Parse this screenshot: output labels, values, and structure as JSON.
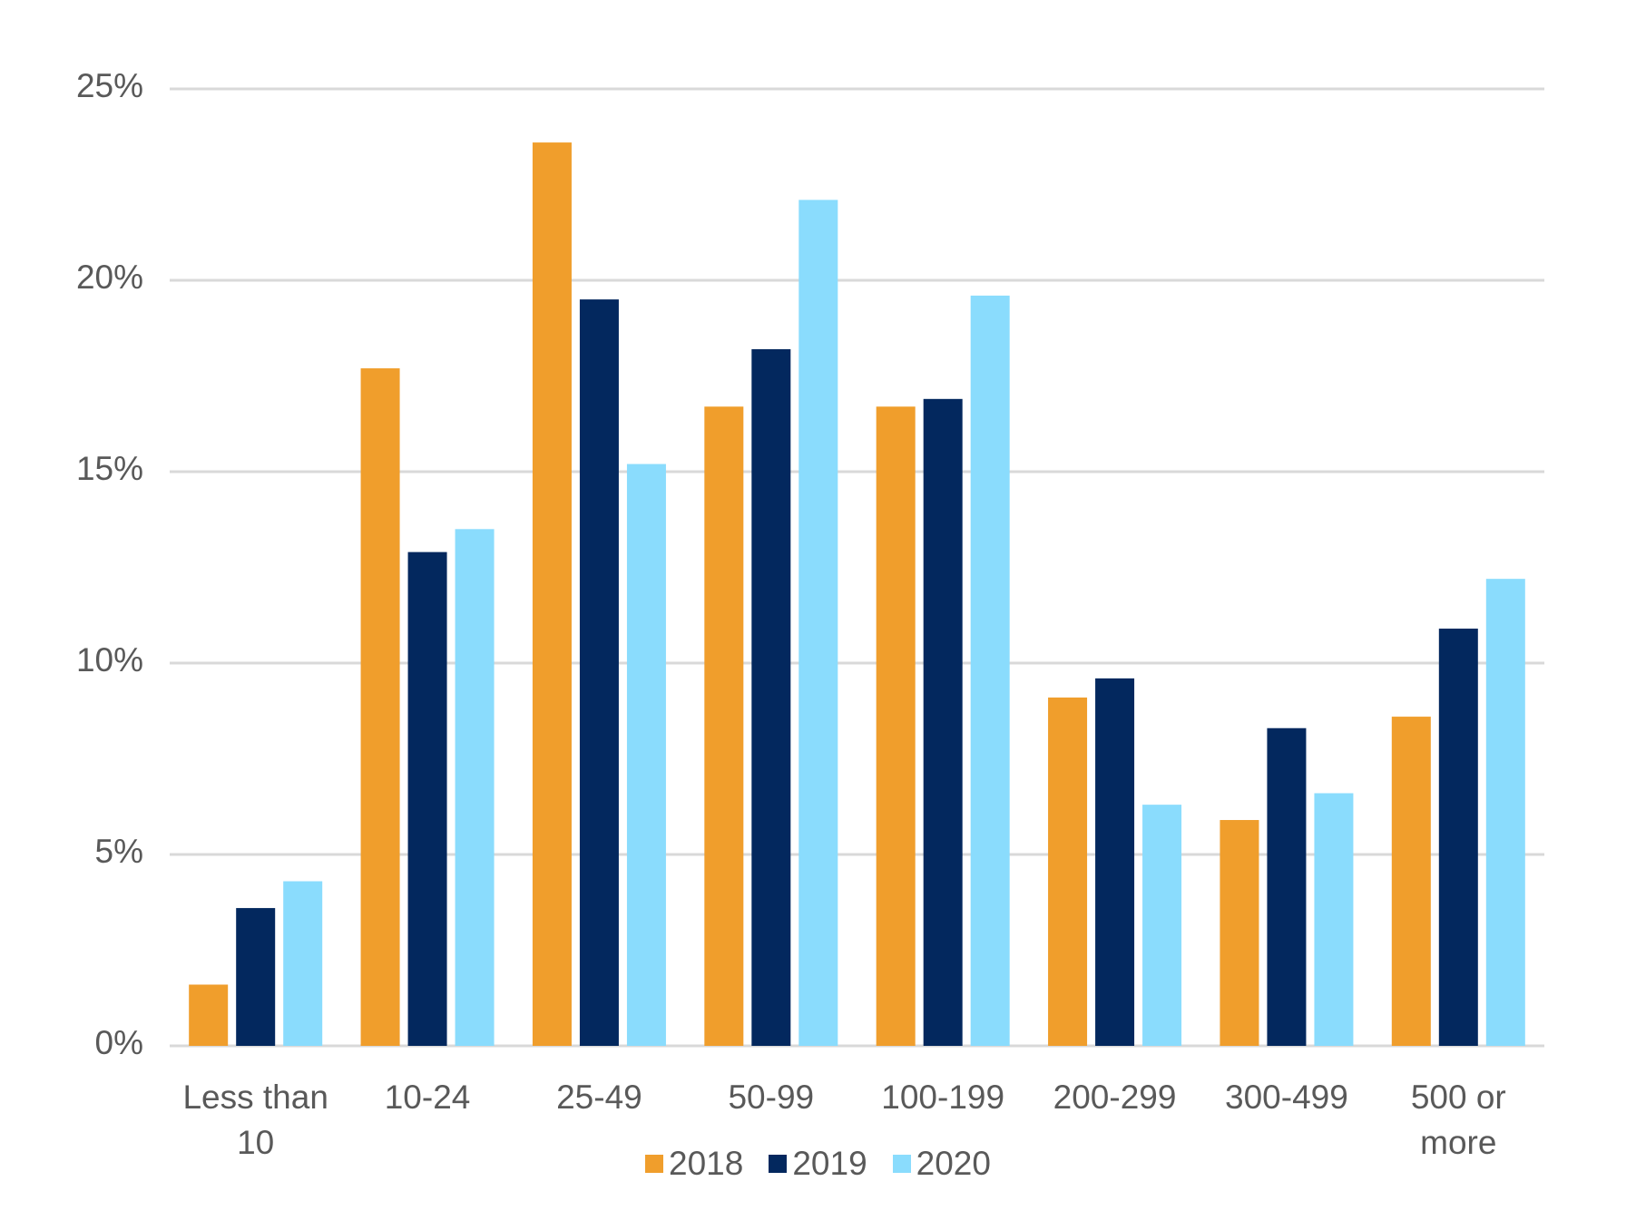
{
  "chart_data": {
    "type": "bar",
    "categories": [
      "Less than 10",
      "10-24",
      "25-49",
      "50-99",
      "100-199",
      "200-299",
      "300-499",
      "500 or more"
    ],
    "series": [
      {
        "name": "2018",
        "color": "#f09e2c",
        "values": [
          1.6,
          17.7,
          23.6,
          16.7,
          16.7,
          9.1,
          5.9,
          8.6
        ]
      },
      {
        "name": "2019",
        "color": "#03285e",
        "values": [
          3.6,
          12.9,
          19.5,
          18.2,
          16.9,
          9.6,
          8.3,
          10.9
        ]
      },
      {
        "name": "2020",
        "color": "#8adcfd",
        "values": [
          4.3,
          13.5,
          15.2,
          22.1,
          19.6,
          6.3,
          6.6,
          12.2
        ]
      }
    ],
    "ylim": [
      0,
      25
    ],
    "yticks": [
      {
        "value": 0,
        "label": "0%"
      },
      {
        "value": 5,
        "label": "5%"
      },
      {
        "value": 10,
        "label": "10%"
      },
      {
        "value": 15,
        "label": "15%"
      },
      {
        "value": 20,
        "label": "20%"
      },
      {
        "value": 25,
        "label": "25%"
      }
    ],
    "grid": true,
    "legend": "bottom"
  }
}
